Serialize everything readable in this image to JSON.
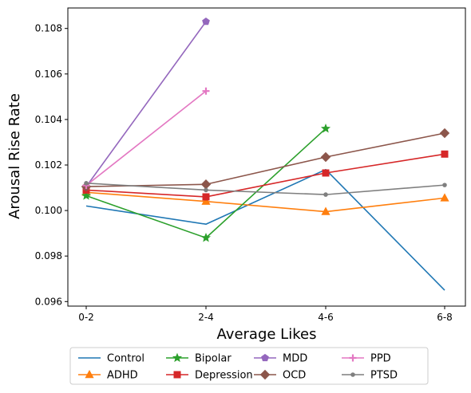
{
  "chart_data": {
    "type": "line",
    "xlabel": "Average Likes",
    "ylabel": "Arousal Rise Rate",
    "categories": [
      "0-2",
      "2-4",
      "4-6",
      "6-8"
    ],
    "ylim": [
      0.0958,
      0.1089
    ],
    "yticks": [
      0.096,
      0.098,
      0.1,
      0.102,
      0.104,
      0.106,
      0.108
    ],
    "yticks_labels": [
      "0.096",
      "0.098",
      "0.100",
      "0.102",
      "0.104",
      "0.106",
      "0.108"
    ],
    "grid": false,
    "legend_placement": "bottom-center-outside",
    "series": [
      {
        "name": "Control",
        "color": "#1f77b4",
        "marker": "none",
        "values": [
          0.1002,
          0.0994,
          0.1018,
          0.0965
        ]
      },
      {
        "name": "ADHD",
        "color": "#ff7f0e",
        "marker": "triangle",
        "values": [
          0.1008,
          0.1004,
          0.09995,
          0.10055
        ]
      },
      {
        "name": "Bipolar",
        "color": "#2ca02c",
        "marker": "star",
        "values": [
          0.10065,
          0.0988,
          0.1036,
          null
        ]
      },
      {
        "name": "Depression",
        "color": "#d62728",
        "marker": "square",
        "values": [
          0.1009,
          0.1006,
          0.10165,
          0.10248
        ]
      },
      {
        "name": "MDD",
        "color": "#9467bd",
        "marker": "pentagon",
        "values": [
          0.10105,
          0.1083,
          null,
          null
        ]
      },
      {
        "name": "OCD",
        "color": "#8c564b",
        "marker": "diamond",
        "values": [
          0.10105,
          0.10115,
          0.10235,
          0.1034
        ]
      },
      {
        "name": "PPD",
        "color": "#e377c2",
        "marker": "plus",
        "values": [
          0.1011,
          0.10525,
          null,
          null
        ]
      },
      {
        "name": "PTSD",
        "color": "#7f7f7f",
        "marker": "dot",
        "values": [
          0.1012,
          0.1009,
          0.1007,
          0.10112
        ]
      }
    ]
  }
}
